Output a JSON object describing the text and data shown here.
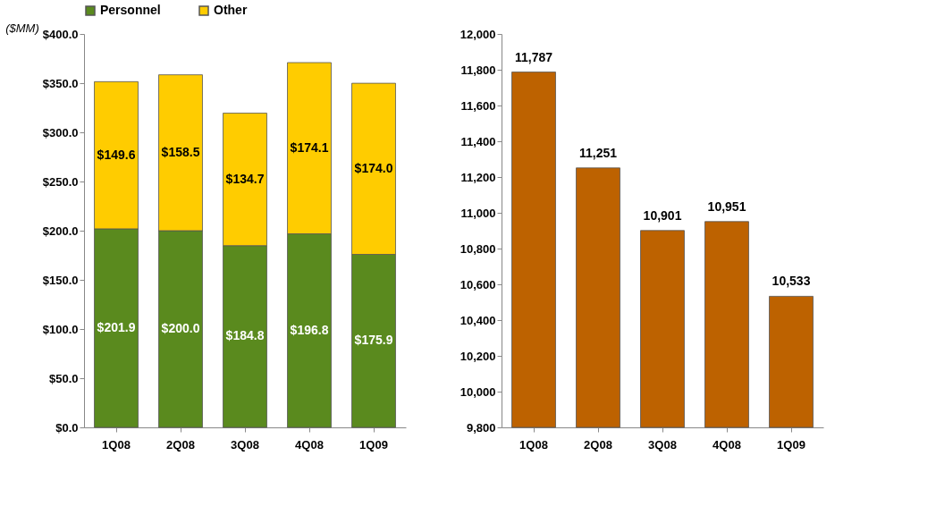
{
  "chart_data": [
    {
      "type": "bar",
      "ylabel": "($MM)",
      "categories": [
        "1Q08",
        "2Q08",
        "3Q08",
        "4Q08",
        "1Q09"
      ],
      "stacked": true,
      "legend": "top",
      "series": [
        {
          "name": "Personnel",
          "color": "#5a8a1e",
          "values": [
            201.9,
            200.0,
            184.8,
            196.8,
            175.9
          ],
          "value_labels": [
            "$201.9",
            "$200.0",
            "$184.8",
            "$196.8",
            "$175.9"
          ]
        },
        {
          "name": "Other",
          "color": "#ffcc00",
          "values": [
            149.6,
            158.5,
            134.7,
            174.1,
            174.0
          ],
          "value_labels": [
            "$149.6",
            "$158.5",
            "$134.7",
            "$174.1",
            "$174.0"
          ]
        }
      ],
      "ylim": [
        0,
        400
      ],
      "yticks": [
        {
          "value": 0,
          "label": "$0.0"
        },
        {
          "value": 50,
          "label": "$50.0"
        },
        {
          "value": 100,
          "label": "$100.0"
        },
        {
          "value": 150,
          "label": "$150.0"
        },
        {
          "value": 200,
          "label": "$200.0"
        },
        {
          "value": 250,
          "label": "$250.0"
        },
        {
          "value": 300,
          "label": "$300.0"
        },
        {
          "value": 350,
          "label": "$350.0"
        },
        {
          "value": 400,
          "label": "$400.0"
        }
      ],
      "grid": false
    },
    {
      "type": "bar",
      "categories": [
        "1Q08",
        "2Q08",
        "3Q08",
        "4Q08",
        "1Q09"
      ],
      "series": [
        {
          "color": "#bd6200",
          "values": [
            11787,
            11251,
            10901,
            10951,
            10533
          ],
          "value_labels": [
            "11,787",
            "11,251",
            "10,901",
            "10,951",
            "10,533"
          ]
        }
      ],
      "ylim": [
        9800,
        12000
      ],
      "yticks": [
        {
          "value": 9800,
          "label": "9,800"
        },
        {
          "value": 10000,
          "label": "10,000"
        },
        {
          "value": 10200,
          "label": "10,200"
        },
        {
          "value": 10400,
          "label": "10,400"
        },
        {
          "value": 10600,
          "label": "10,600"
        },
        {
          "value": 10800,
          "label": "10,800"
        },
        {
          "value": 11000,
          "label": "11,000"
        },
        {
          "value": 11200,
          "label": "11,200"
        },
        {
          "value": 11400,
          "label": "11,400"
        },
        {
          "value": 11600,
          "label": "11,600"
        },
        {
          "value": 11800,
          "label": "11,800"
        },
        {
          "value": 12000,
          "label": "12,000"
        }
      ],
      "grid": false
    }
  ]
}
